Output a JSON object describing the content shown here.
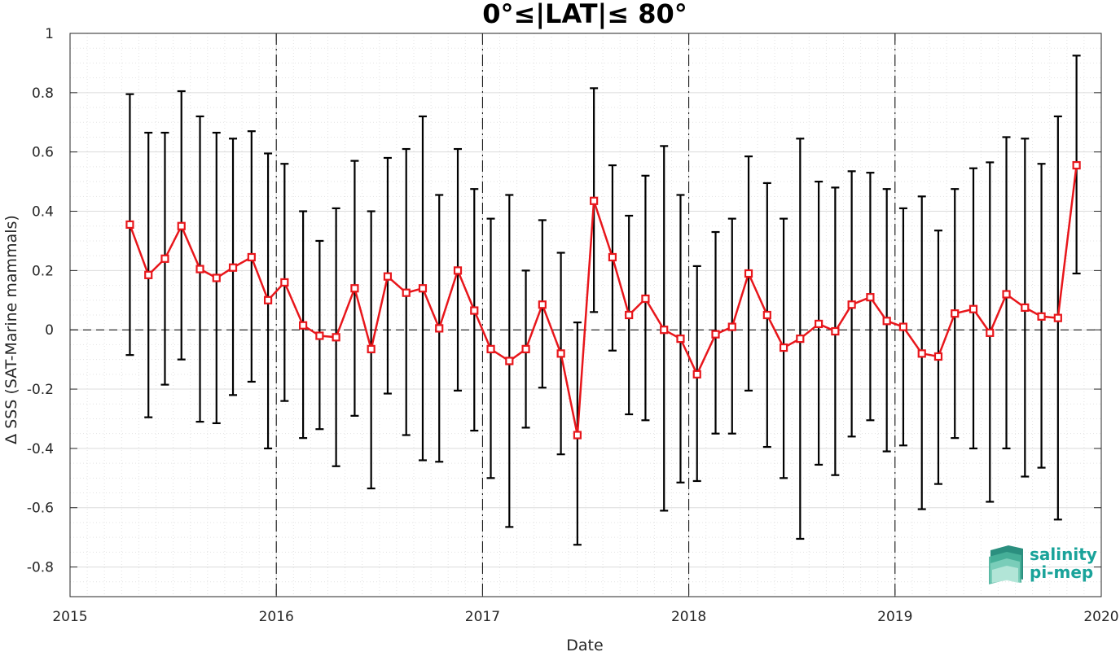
{
  "chart_data": {
    "type": "line",
    "title": "0°≤|LAT|≤ 80°",
    "xlabel": "Date",
    "ylabel": "Δ SSS (SAT-Marine mammals)",
    "xlim": [
      2015,
      2020
    ],
    "ylim": [
      -0.9,
      1.0
    ],
    "x_ticks": [
      "2015",
      "2016",
      "2017",
      "2018",
      "2019",
      "2020"
    ],
    "y_ticks": [
      "1",
      "0.8",
      "0.6",
      "0.4",
      "0.2",
      "0",
      "-0.2",
      "-0.4",
      "-0.6",
      "-0.8"
    ],
    "grid": "major and minor, dotted",
    "year_separators": [
      2016,
      2017,
      2018,
      2019
    ],
    "zero_line": true,
    "colors": {
      "series": "#e8161b",
      "errorbar": "#000000",
      "grid": "#d9d9d9"
    },
    "series": [
      {
        "x": [
          2015.29,
          2015.38,
          2015.46,
          2015.54,
          2015.63,
          2015.71,
          2015.79,
          2015.88,
          2015.96,
          2016.04,
          2016.13,
          2016.21,
          2016.29,
          2016.38,
          2016.46,
          2016.54,
          2016.63,
          2016.71,
          2016.79,
          2016.88,
          2016.96,
          2017.04,
          2017.13,
          2017.21,
          2017.29,
          2017.38,
          2017.46,
          2017.54,
          2017.63,
          2017.71,
          2017.79,
          2017.88,
          2017.96,
          2018.04,
          2018.13,
          2018.21,
          2018.29,
          2018.38,
          2018.46,
          2018.54,
          2018.63,
          2018.71,
          2018.79,
          2018.88,
          2018.96,
          2019.04,
          2019.13,
          2019.21,
          2019.29,
          2019.38,
          2019.46,
          2019.54,
          2019.63,
          2019.71,
          2019.79,
          2019.88
        ],
        "y": [
          0.355,
          0.185,
          0.24,
          0.35,
          0.205,
          0.175,
          0.21,
          0.245,
          0.1,
          0.16,
          0.015,
          -0.02,
          -0.025,
          0.14,
          -0.065,
          0.18,
          0.125,
          0.14,
          0.005,
          0.2,
          0.065,
          -0.065,
          -0.105,
          -0.065,
          0.085,
          -0.08,
          -0.355,
          0.435,
          0.245,
          0.05,
          0.105,
          0.0,
          -0.03,
          -0.15,
          -0.015,
          0.01,
          0.19,
          0.05,
          -0.06,
          -0.03,
          0.02,
          -0.005,
          0.085,
          0.11,
          0.03,
          0.01,
          -0.08,
          -0.09,
          0.055,
          0.07,
          -0.01,
          0.12,
          0.075,
          0.045,
          0.04,
          0.555
        ],
        "err_high": [
          0.795,
          0.665,
          0.665,
          0.805,
          0.72,
          0.665,
          0.645,
          0.67,
          0.595,
          0.56,
          0.4,
          0.3,
          0.41,
          0.57,
          0.4,
          0.58,
          0.61,
          0.72,
          0.455,
          0.61,
          0.475,
          0.375,
          0.455,
          0.2,
          0.37,
          0.26,
          0.025,
          0.815,
          0.555,
          0.385,
          0.52,
          0.62,
          0.455,
          0.215,
          0.33,
          0.375,
          0.585,
          0.495,
          0.375,
          0.645,
          0.5,
          0.48,
          0.535,
          0.53,
          0.475,
          0.41,
          0.45,
          0.335,
          0.475,
          0.545,
          0.565,
          0.65,
          0.645,
          0.56,
          0.72,
          0.925
        ],
        "err_low": [
          -0.085,
          -0.295,
          -0.185,
          -0.1,
          -0.31,
          -0.315,
          -0.22,
          -0.175,
          -0.4,
          -0.24,
          -0.365,
          -0.335,
          -0.46,
          -0.29,
          -0.535,
          -0.215,
          -0.355,
          -0.44,
          -0.445,
          -0.205,
          -0.34,
          -0.5,
          -0.665,
          -0.33,
          -0.195,
          -0.42,
          -0.725,
          0.06,
          -0.07,
          -0.285,
          -0.305,
          -0.61,
          -0.515,
          -0.51,
          -0.35,
          -0.35,
          -0.205,
          -0.395,
          -0.5,
          -0.705,
          -0.455,
          -0.49,
          -0.36,
          -0.305,
          -0.41,
          -0.39,
          -0.605,
          -0.52,
          -0.365,
          -0.4,
          -0.58,
          -0.4,
          -0.495,
          -0.465,
          -0.64,
          0.19
        ]
      }
    ]
  },
  "logo": {
    "line1": "salinity",
    "line2": "pi-mep"
  }
}
